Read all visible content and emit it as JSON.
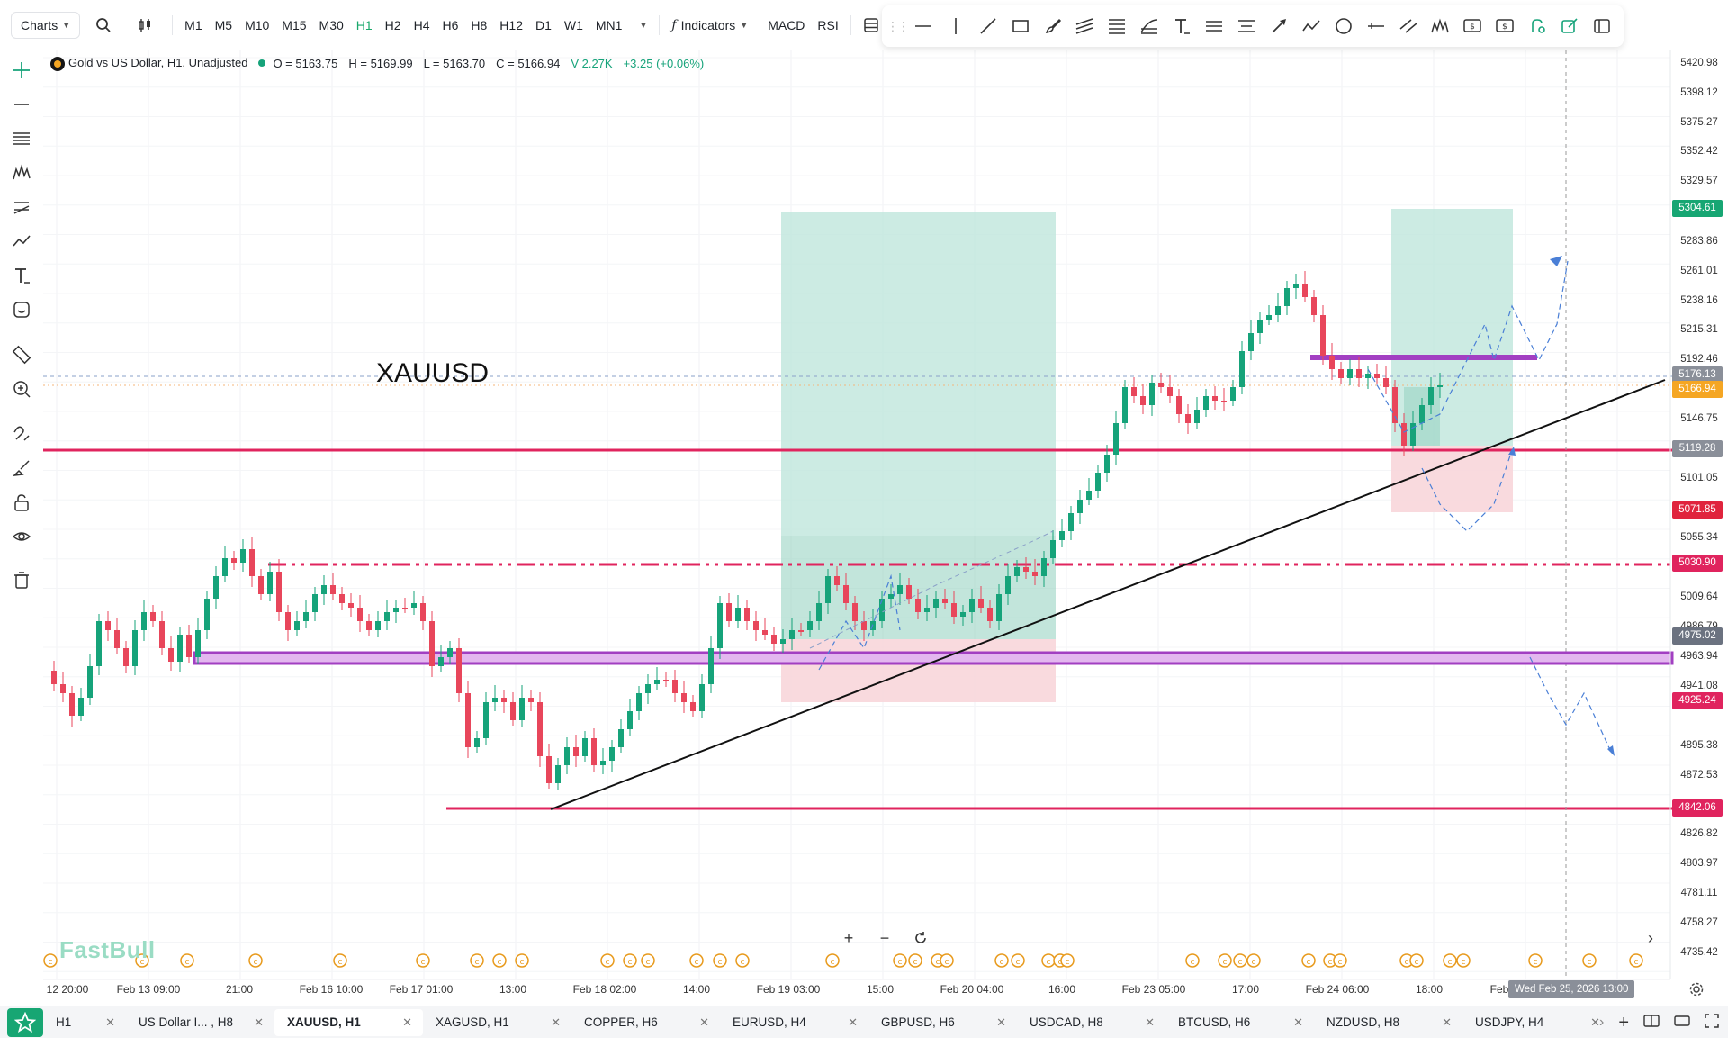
{
  "toolbar": {
    "charts_label": "Charts",
    "timeframes": [
      "M1",
      "M5",
      "M10",
      "M15",
      "M30",
      "H1",
      "H2",
      "H4",
      "H6",
      "H8",
      "H12",
      "D1",
      "W1",
      "MN1"
    ],
    "active_timeframe": "H1",
    "indicators_label": "Indicators",
    "macd_label": "MACD",
    "rsi_label": "RSI"
  },
  "legend": {
    "symbol_title": "Gold vs US Dollar, H1, Unadjusted",
    "open": "O = 5163.75",
    "high": "H = 5169.99",
    "low": "L = 5163.70",
    "close": "C = 5166.94",
    "volume": "V 2.27K",
    "change": "+3.25 (+0.06%)"
  },
  "chart": {
    "annotation_text": "XAUUSD",
    "watermark": "FastBull",
    "price_labels": [
      "5420.98",
      "5398.12",
      "5375.27",
      "5352.42",
      "5329.57",
      "5283.86",
      "5261.01",
      "5238.16",
      "5215.31",
      "5192.46",
      "5146.75",
      "5101.05",
      "5055.34",
      "5009.64",
      "4986.79",
      "4963.94",
      "4941.08",
      "4895.38",
      "4872.53",
      "4826.82",
      "4803.97",
      "4781.11",
      "4758.27",
      "4735.42"
    ],
    "price_tags": {
      "tp_top": "5304.61",
      "crosshair": "5176.13",
      "current": "5166.94",
      "level_high": "5119.28",
      "sl_low": "5071.85",
      "dashdot_level": "5030.90",
      "purple_level": "4975.02",
      "level_low": "4925.24",
      "bottom_level": "4842.06"
    },
    "time_labels": [
      "12 20:00",
      "Feb 13 09:00",
      "21:00",
      "Feb 16 10:00",
      "Feb 17 01:00",
      "13:00",
      "Feb 18 02:00",
      "14:00",
      "Feb 19 03:00",
      "15:00",
      "Feb 20 04:00",
      "16:00",
      "Feb 23 05:00",
      "17:00",
      "Feb 24 06:00",
      "18:00",
      "Feb"
    ],
    "time_hover": "Wed Feb 25, 2026 13:00",
    "colors": {
      "up": "#16a37a",
      "down": "#e8465b",
      "level_line": "#e0245e",
      "purple_zone": "#a23fc2",
      "profit_zone": "#bfe6dc",
      "loss_zone": "#f8d6da"
    },
    "price_axis_range": [
      4735.42,
      5420.98
    ]
  },
  "tabs": [
    {
      "label": "H1"
    },
    {
      "label": "US Dollar I... , H8"
    },
    {
      "label": "XAUUSD, H1"
    },
    {
      "label": "XAGUSD, H1"
    },
    {
      "label": "COPPER, H6"
    },
    {
      "label": "EURUSD, H4"
    },
    {
      "label": "GBPUSD, H6"
    },
    {
      "label": "USDCAD, H8"
    },
    {
      "label": "BTCUSD, H6"
    },
    {
      "label": "NZDUSD, H8"
    },
    {
      "label": "USDJPY, H4"
    }
  ],
  "active_tab": "XAUUSD, H1"
}
